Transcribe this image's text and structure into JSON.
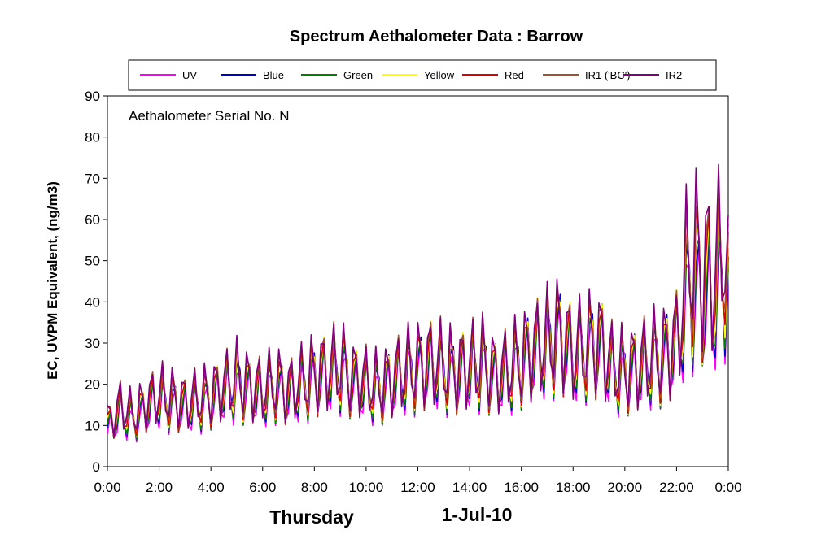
{
  "chart_data": {
    "type": "line",
    "title": "Spectrum Aethalometer Data  :  Barrow",
    "ylabel": "EC, UVPM Equivalent, (ng/m3)",
    "xlabel": "Thursday",
    "date_label": "1-Jul-10",
    "annotation": "Aethalometer  Serial No. N",
    "ylim": [
      0,
      90
    ],
    "yticks": [
      "0",
      "10",
      "20",
      "30",
      "40",
      "50",
      "60",
      "70",
      "80",
      "90"
    ],
    "xticks": [
      "0:00",
      "2:00",
      "4:00",
      "6:00",
      "8:00",
      "10:00",
      "12:00",
      "14:00",
      "16:00",
      "18:00",
      "20:00",
      "22:00",
      "0:00"
    ],
    "legend_position": "top",
    "grid": false,
    "x": [
      "0:00",
      "0:30",
      "1:00",
      "1:30",
      "2:00",
      "2:30",
      "3:00",
      "3:30",
      "4:00",
      "4:30",
      "5:00",
      "5:30",
      "6:00",
      "6:30",
      "7:00",
      "7:30",
      "8:00",
      "8:30",
      "9:00",
      "9:30",
      "10:00",
      "10:30",
      "11:00",
      "11:30",
      "12:00",
      "12:30",
      "13:00",
      "13:30",
      "14:00",
      "14:30",
      "15:00",
      "15:30",
      "16:00",
      "16:30",
      "17:00",
      "17:30",
      "18:00",
      "18:30",
      "19:00",
      "19:30",
      "20:00",
      "20:30",
      "21:00",
      "21:30",
      "22:00",
      "22:30",
      "23:00",
      "23:30",
      "24:00"
    ],
    "series": [
      {
        "name": "UV",
        "color": "#ff00ff",
        "values": [
          8,
          12,
          10,
          13,
          15,
          14,
          13,
          14,
          15,
          17,
          18,
          17,
          16,
          18,
          16,
          18,
          20,
          21,
          22,
          19,
          18,
          17,
          19,
          21,
          22,
          23,
          22,
          21,
          22,
          23,
          20,
          21,
          24,
          26,
          28,
          30,
          25,
          27,
          28,
          22,
          21,
          22,
          24,
          25,
          28,
          40,
          38,
          37,
          48
        ]
      },
      {
        "name": "Blue",
        "color": "#0000cc",
        "values": [
          9,
          13,
          11,
          14,
          16,
          15,
          14,
          15,
          16,
          18,
          20,
          18,
          17,
          19,
          17,
          19,
          21,
          22,
          23,
          20,
          19,
          18,
          20,
          22,
          23,
          24,
          23,
          22,
          23,
          24,
          21,
          22,
          25,
          27,
          29,
          31,
          26,
          28,
          29,
          23,
          22,
          23,
          25,
          26,
          29,
          43,
          40,
          39,
          51
        ]
      },
      {
        "name": "Green",
        "color": "#008000",
        "values": [
          9,
          13,
          11,
          14,
          16,
          15,
          14,
          15,
          16,
          18,
          19,
          18,
          17,
          19,
          17,
          19,
          21,
          22,
          23,
          20,
          19,
          18,
          20,
          22,
          23,
          24,
          23,
          22,
          23,
          24,
          21,
          22,
          25,
          27,
          29,
          31,
          26,
          28,
          29,
          23,
          22,
          23,
          25,
          26,
          29,
          45,
          42,
          40,
          53
        ]
      },
      {
        "name": "Yellow",
        "color": "#ffff00",
        "values": [
          10,
          14,
          12,
          15,
          17,
          16,
          15,
          16,
          17,
          19,
          20,
          19,
          18,
          20,
          18,
          20,
          22,
          23,
          24,
          21,
          20,
          19,
          21,
          23,
          24,
          25,
          24,
          23,
          24,
          25,
          22,
          23,
          26,
          28,
          30,
          32,
          27,
          29,
          30,
          24,
          23,
          24,
          26,
          27,
          30,
          47,
          44,
          42,
          55
        ]
      },
      {
        "name": "Red",
        "color": "#dd0000",
        "values": [
          10,
          14,
          12,
          15,
          17,
          16,
          15,
          16,
          17,
          19,
          21,
          19,
          18,
          20,
          18,
          20,
          22,
          23,
          24,
          21,
          20,
          19,
          21,
          23,
          24,
          25,
          24,
          23,
          24,
          25,
          22,
          23,
          26,
          28,
          30,
          32,
          27,
          29,
          30,
          24,
          23,
          24,
          26,
          27,
          30,
          49,
          46,
          44,
          57
        ]
      },
      {
        "name": "IR1 ('BC')",
        "color": "#a0522d",
        "values": [
          11,
          15,
          13,
          16,
          18,
          17,
          16,
          17,
          18,
          20,
          21,
          20,
          19,
          21,
          19,
          21,
          23,
          24,
          25,
          22,
          21,
          20,
          22,
          24,
          25,
          26,
          25,
          24,
          25,
          26,
          23,
          24,
          27,
          29,
          31,
          33,
          28,
          30,
          31,
          25,
          24,
          25,
          27,
          28,
          31,
          51,
          48,
          46,
          59
        ]
      },
      {
        "name": "IR2",
        "color": "#800080",
        "values": [
          11,
          15,
          13,
          16,
          18,
          17,
          16,
          17,
          18,
          20,
          22,
          20,
          19,
          21,
          19,
          21,
          23,
          24,
          25,
          22,
          21,
          20,
          22,
          24,
          25,
          26,
          25,
          24,
          25,
          26,
          23,
          24,
          27,
          29,
          31,
          33,
          28,
          30,
          31,
          25,
          24,
          25,
          27,
          28,
          31,
          53,
          50,
          48,
          61
        ]
      }
    ]
  }
}
